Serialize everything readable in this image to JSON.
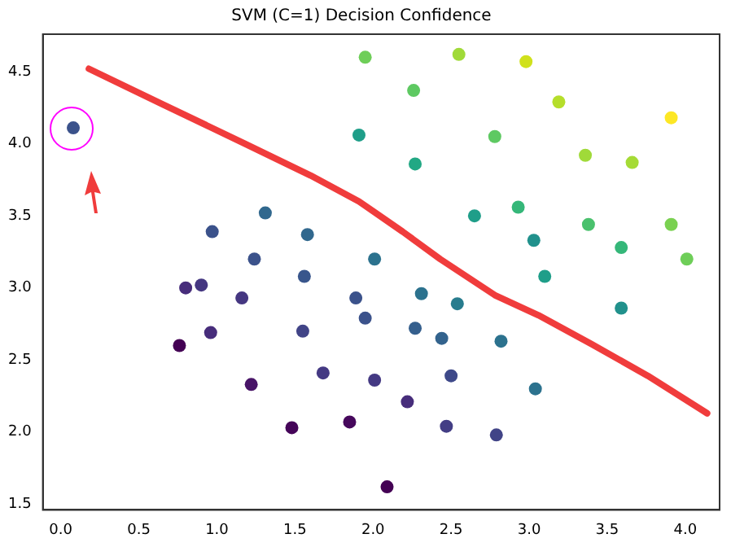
{
  "chart_data": {
    "type": "scatter",
    "title": "SVM (C=1) Decision Confidence",
    "xlim": [
      -0.115,
      4.22
    ],
    "ylim": [
      1.46,
      4.76
    ],
    "xticks": [
      {
        "value": 0,
        "label": "0.0"
      },
      {
        "value": 0.5,
        "label": "0.5"
      },
      {
        "value": 1,
        "label": "1.0"
      },
      {
        "value": 1.5,
        "label": "1.5"
      },
      {
        "value": 2,
        "label": "2.0"
      },
      {
        "value": 2.5,
        "label": "2.5"
      },
      {
        "value": 3,
        "label": "3.0"
      },
      {
        "value": 3.5,
        "label": "3.5"
      },
      {
        "value": 4,
        "label": "4.0"
      }
    ],
    "yticks": [
      {
        "value": 1.5,
        "label": "1.5"
      },
      {
        "value": 2,
        "label": "2.0"
      },
      {
        "value": 2.5,
        "label": "2.5"
      },
      {
        "value": 3,
        "label": "3.0"
      },
      {
        "value": 3.5,
        "label": "3.5"
      },
      {
        "value": 4,
        "label": "4.0"
      },
      {
        "value": 4.5,
        "label": "4.5"
      }
    ],
    "grid": false,
    "legend": false,
    "marker": "circle",
    "series": [
      {
        "x": [
          0.08,
          1.95,
          2.55,
          2.98,
          2.26,
          3.19,
          3.91,
          1.91,
          2.78,
          3.36,
          3.66,
          2.27,
          2.65,
          2.93,
          3.38,
          3.91,
          3.03,
          3.59,
          4.01,
          3.1,
          3.59,
          1.31,
          0.97,
          1.58,
          1.24,
          2.01,
          1.56,
          0.8,
          0.9,
          1.16,
          1.89,
          1.95,
          2.31,
          2.54,
          2.27,
          2.44,
          2.82,
          0.96,
          1.55,
          0.76,
          1.68,
          2.01,
          2.5,
          1.22,
          3.04,
          2.22,
          1.48,
          1.85,
          2.47,
          2.79,
          2.09
        ],
        "values": [
          4.11,
          4.6,
          4.62,
          4.57,
          4.37,
          4.29,
          4.18,
          4.06,
          4.05,
          3.92,
          3.87,
          3.86,
          3.5,
          3.56,
          3.44,
          3.44,
          3.33,
          3.28,
          3.2,
          3.08,
          2.86,
          3.52,
          3.39,
          3.37,
          3.2,
          3.2,
          3.08,
          3.0,
          3.02,
          2.93,
          2.93,
          2.79,
          2.96,
          2.89,
          2.72,
          2.65,
          2.63,
          2.69,
          2.7,
          2.6,
          2.41,
          2.36,
          2.39,
          2.33,
          2.3,
          2.21,
          2.03,
          2.07,
          2.04,
          1.98,
          1.62
        ],
        "colors": [
          "#3b528b",
          "#6ece58",
          "#a0da39",
          "#d0e11c",
          "#5ec962",
          "#b5de2b",
          "#fde725",
          "#1f9e89",
          "#5ec962",
          "#a0da39",
          "#a5db36",
          "#22a884",
          "#1f9e89",
          "#35b779",
          "#4ac16d",
          "#7ad151",
          "#21918c",
          "#35b779",
          "#6ece58",
          "#1f9e89",
          "#21918c",
          "#31688e",
          "#3b528b",
          "#31688e",
          "#3b528b",
          "#2c728e",
          "#39568c",
          "#472d7b",
          "#453781",
          "#453781",
          "#3b528b",
          "#3b528b",
          "#2c728e",
          "#287c8e",
          "#355f8d",
          "#33638d",
          "#2c728e",
          "#472d7b",
          "#414487",
          "#440154",
          "#443983",
          "#443983",
          "#3e4989",
          "#481467",
          "#2c728e",
          "#472d7b",
          "#450559",
          "#46085c",
          "#433e85",
          "#414487",
          "#440154"
        ]
      },
      {
        "type": "line",
        "marker": "none",
        "line_style": "solid",
        "color": "#f03c3c",
        "x": [
          0.18,
          0.66,
          1.18,
          1.6,
          1.91,
          2.19,
          2.43,
          2.78,
          3.06,
          3.4,
          3.76,
          4.14
        ],
        "values": [
          4.52,
          4.27,
          4.0,
          3.78,
          3.6,
          3.39,
          3.2,
          2.95,
          2.81,
          2.61,
          2.39,
          2.13
        ]
      }
    ]
  }
}
